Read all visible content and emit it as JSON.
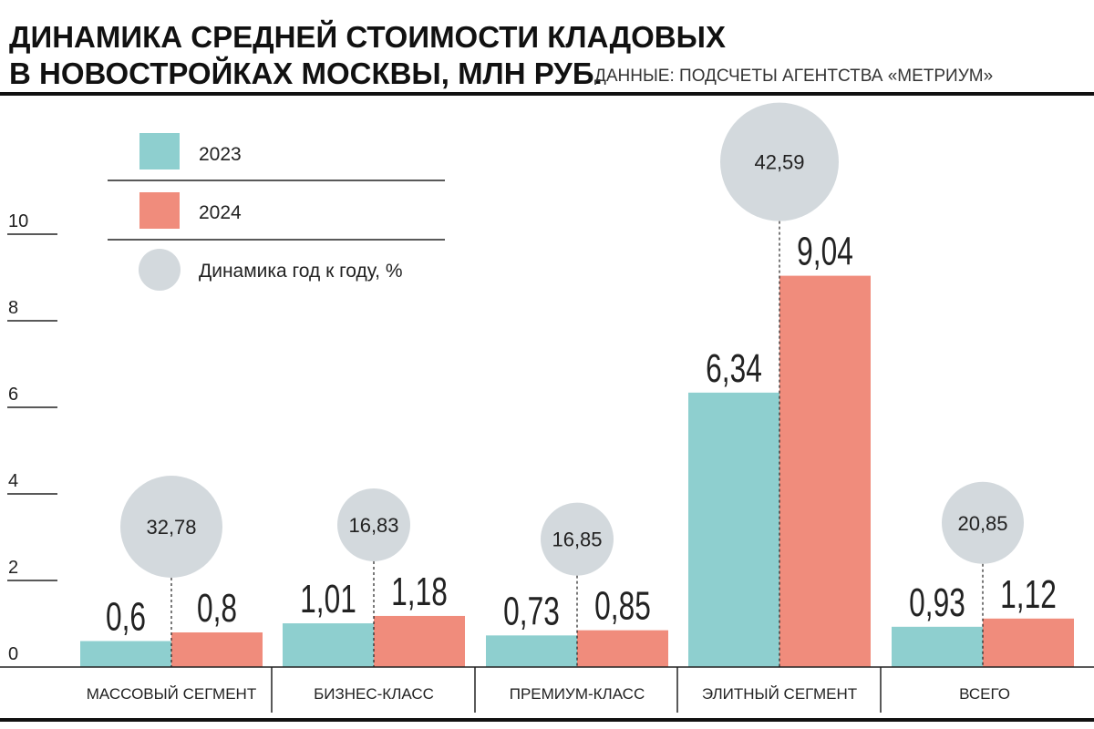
{
  "chart_data": {
    "type": "bar",
    "title_line1": "ДИНАМИКА СРЕДНЕЙ СТОИМОСТИ КЛАДОВЫХ",
    "title_line2": "В НОВОСТРОЙКАХ МОСКВЫ, МЛН РУБ.",
    "source": "ДАННЫЕ: ПОДСЧЕТЫ АГЕНТСТВА «МЕТРИУМ»",
    "categories": [
      "МАССОВЫЙ СЕГМЕНТ",
      "БИЗНЕС-КЛАСС",
      "ПРЕМИУМ-КЛАСС",
      "ЭЛИТНЫЙ СЕГМЕНТ",
      "ВСЕГО"
    ],
    "series": [
      {
        "name": "2023",
        "color": "#8ecfcf",
        "values": [
          0.6,
          1.01,
          0.73,
          6.34,
          0.93
        ],
        "labels": [
          "0,6",
          "1,01",
          "0,73",
          "6,34",
          "0,93"
        ]
      },
      {
        "name": "2024",
        "color": "#f08c7c",
        "values": [
          0.8,
          1.18,
          0.85,
          9.04,
          1.12
        ],
        "labels": [
          "0,8",
          "1,18",
          "0,85",
          "9,04",
          "1,12"
        ]
      }
    ],
    "yoy_growth": {
      "name": "Динамика год к году, %",
      "color": "#d3d9dd",
      "values": [
        32.78,
        16.83,
        16.85,
        42.59,
        20.85
      ],
      "labels": [
        "32,78",
        "16,83",
        "16,85",
        "42,59",
        "20,85"
      ]
    },
    "y_ticks": [
      0,
      2,
      4,
      6,
      8,
      10
    ],
    "ylim": [
      0,
      10
    ],
    "xlabel": "",
    "ylabel": ""
  }
}
